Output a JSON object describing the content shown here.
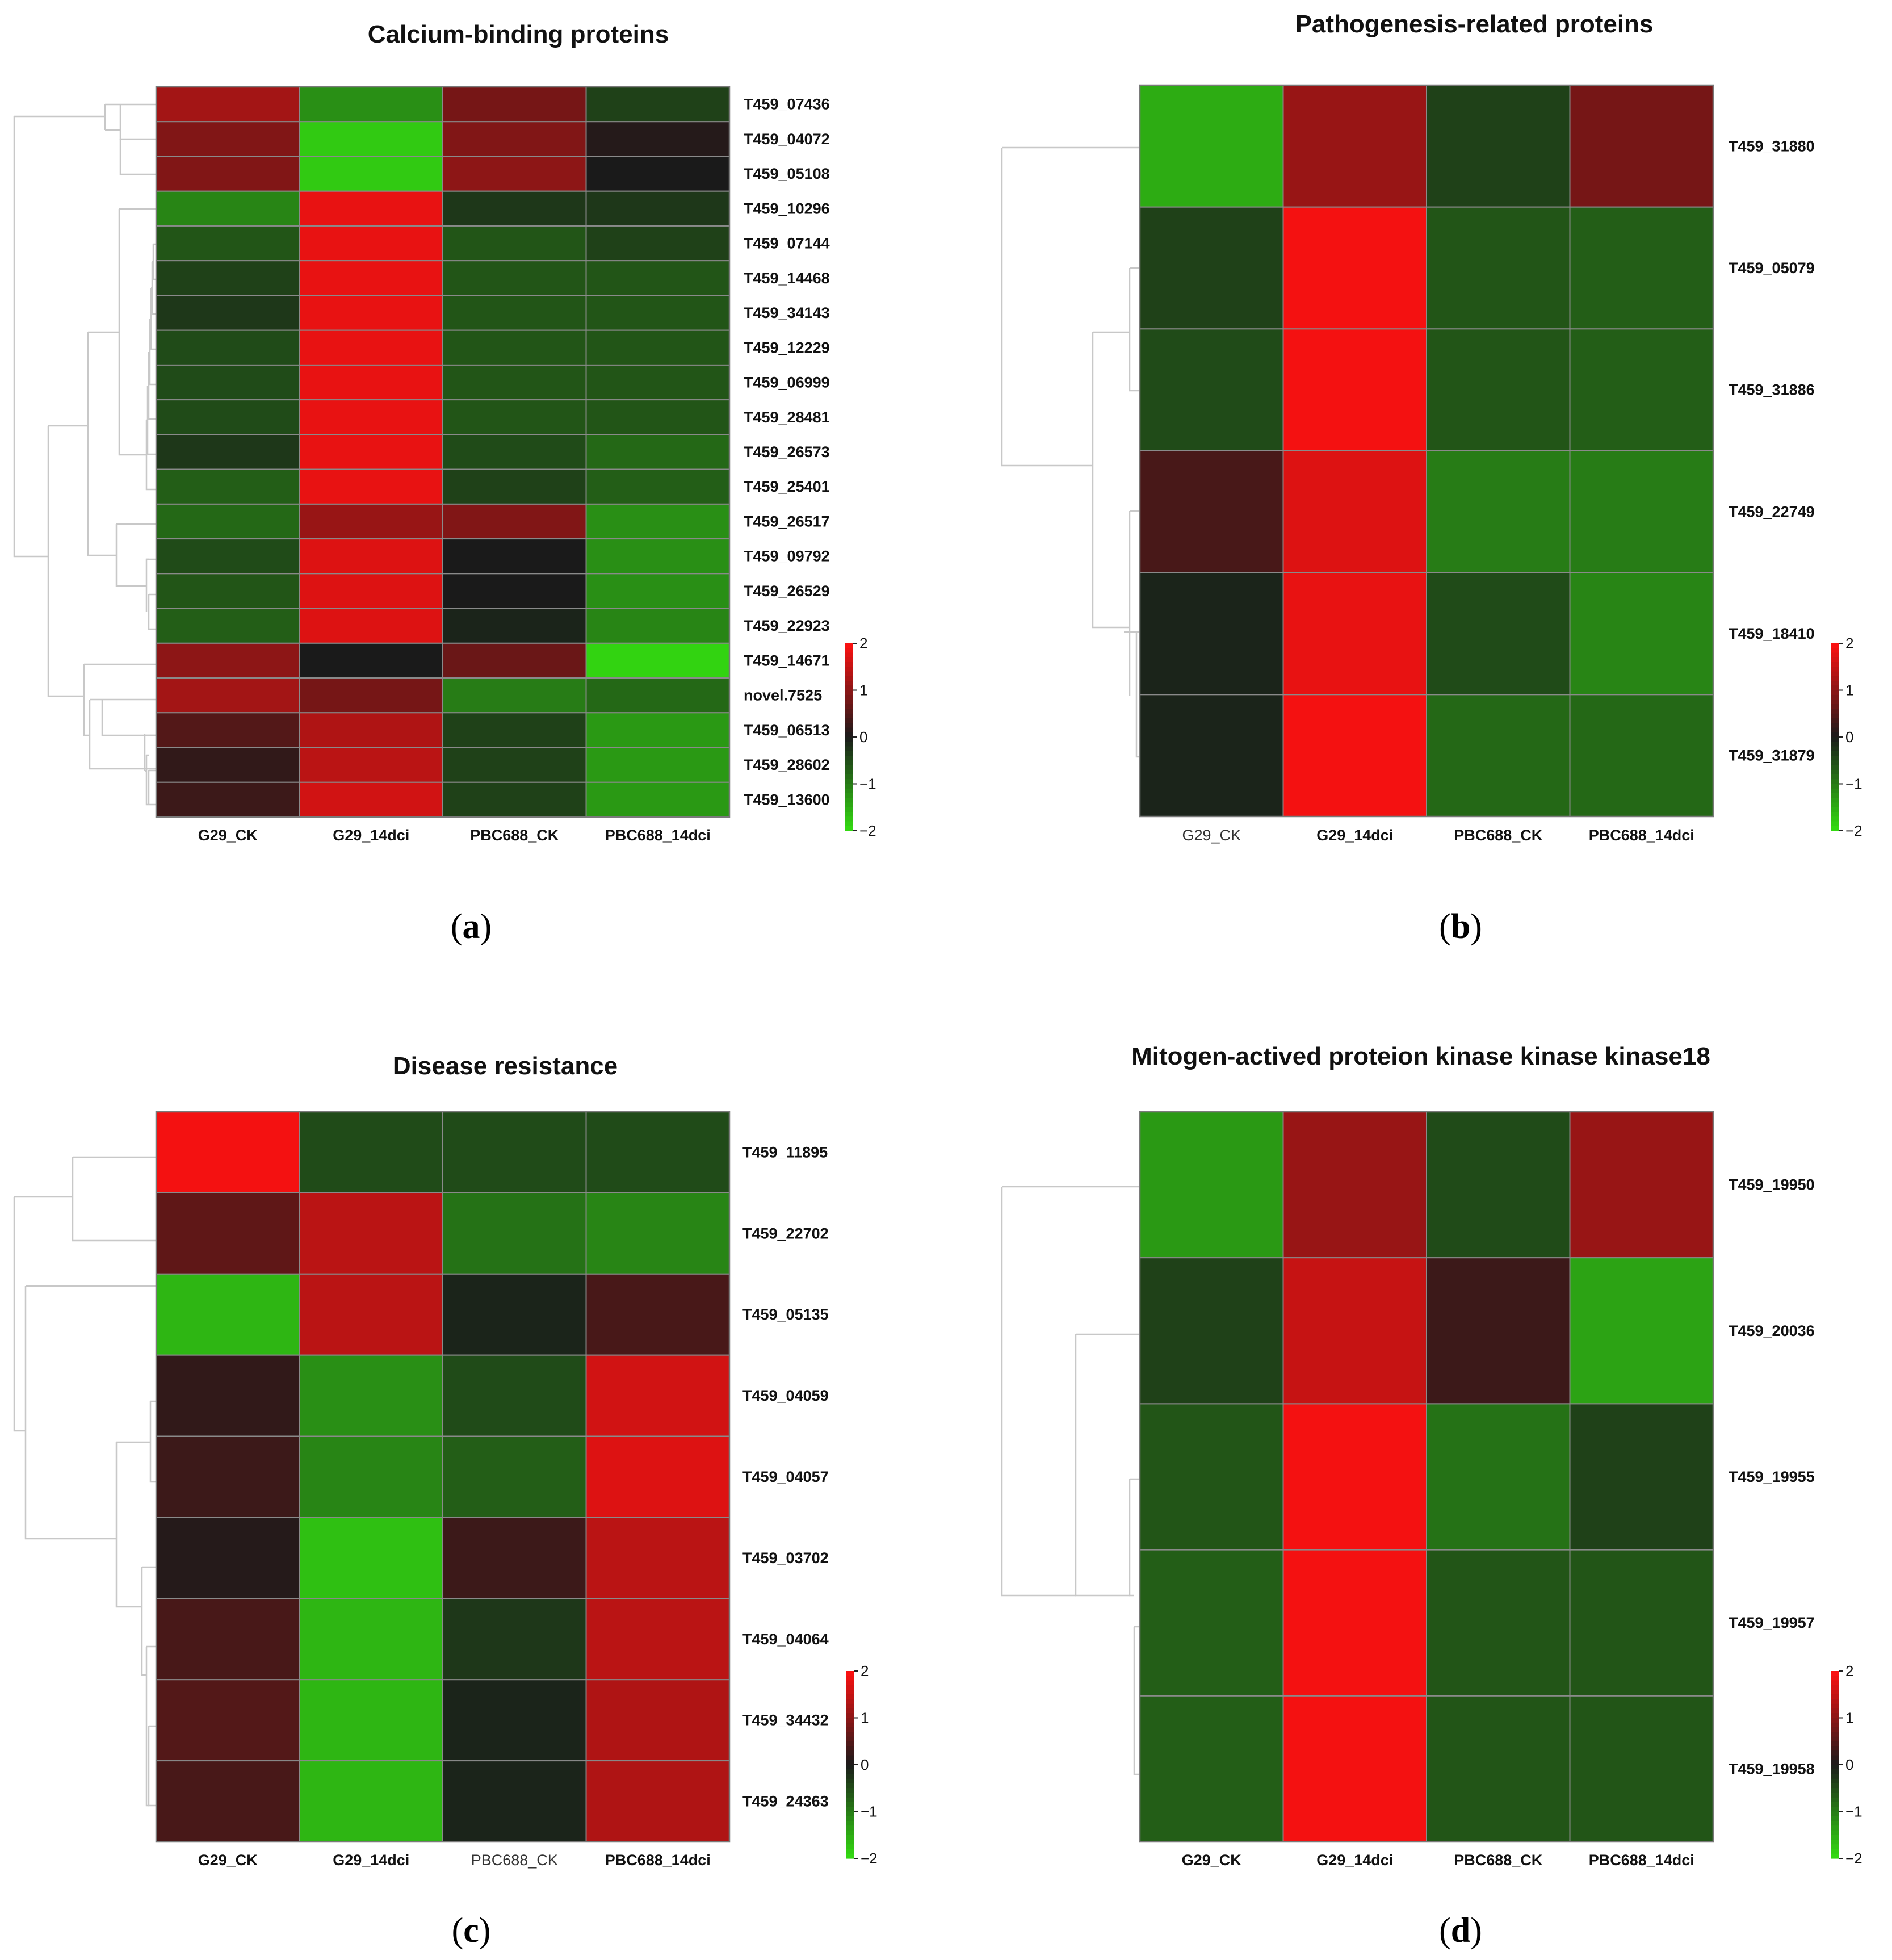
{
  "figure": {
    "colorbar": {
      "min": -2,
      "max": 2,
      "ticks": [
        "2",
        "1",
        "0",
        "−1",
        "−2"
      ],
      "low_color": "#33dd11",
      "mid_color": "#1a1a1a",
      "high_color": "#ff1111"
    }
  },
  "chart_data": [
    {
      "type": "heatmap",
      "panel": "a",
      "caption": "(a)",
      "caption_letter": "a",
      "title": "Calcium-binding proteins",
      "columns": [
        "G29_CK",
        "G29_14dci",
        "PBC688_CK",
        "PBC688_14dci"
      ],
      "column_label_weight": [
        "bold",
        "bold",
        "bold",
        "bold"
      ],
      "rows": [
        "T459_07436",
        "T459_04072",
        "T459_05108",
        "T459_10296",
        "T459_07144",
        "T459_14468",
        "T459_34143",
        "T459_12229",
        "T459_06999",
        "T459_28481",
        "T459_26573",
        "T459_25401",
        "T459_26517",
        "T459_09792",
        "T459_26529",
        "T459_22923",
        "T459_14671",
        "novel.7525",
        "T459_06513",
        "T459_28602",
        "T459_13600"
      ],
      "values": [
        [
          1.2,
          -1.2,
          0.8,
          -0.4
        ],
        [
          0.9,
          -1.8,
          0.9,
          0.1
        ],
        [
          0.9,
          -1.8,
          1.0,
          0.0
        ],
        [
          -1.1,
          1.8,
          -0.3,
          -0.3
        ],
        [
          -0.6,
          1.8,
          -0.6,
          -0.4
        ],
        [
          -0.4,
          1.8,
          -0.6,
          -0.6
        ],
        [
          -0.3,
          1.8,
          -0.6,
          -0.6
        ],
        [
          -0.5,
          1.8,
          -0.6,
          -0.6
        ],
        [
          -0.5,
          1.8,
          -0.6,
          -0.6
        ],
        [
          -0.5,
          1.8,
          -0.6,
          -0.6
        ],
        [
          -0.3,
          1.8,
          -0.5,
          -0.8
        ],
        [
          -0.7,
          1.8,
          -0.4,
          -0.7
        ],
        [
          -0.8,
          1.1,
          0.9,
          -1.2
        ],
        [
          -0.5,
          1.7,
          0.0,
          -1.2
        ],
        [
          -0.6,
          1.7,
          0.0,
          -1.2
        ],
        [
          -0.7,
          1.7,
          -0.1,
          -1.1
        ],
        [
          1.0,
          0.0,
          0.7,
          -1.9
        ],
        [
          1.2,
          0.8,
          -1.0,
          -0.8
        ],
        [
          0.5,
          1.3,
          -0.4,
          -1.3
        ],
        [
          0.2,
          1.4,
          -0.4,
          -1.3
        ],
        [
          0.3,
          1.6,
          -0.4,
          -1.3
        ]
      ]
    },
    {
      "type": "heatmap",
      "panel": "b",
      "caption": "(b)",
      "caption_letter": "b",
      "title": "Pathogenesis-related proteins",
      "columns": [
        "G29_CK",
        "G29_14dci",
        "PBC688_CK",
        "PBC688_14dci"
      ],
      "column_label_weight": [
        "normal",
        "bold",
        "bold",
        "bold"
      ],
      "rows": [
        "T459_31880",
        "T459_05079",
        "T459_31886",
        "T459_22749",
        "T459_18410",
        "T459_31879"
      ],
      "values": [
        [
          -1.5,
          1.1,
          -0.4,
          0.8
        ],
        [
          -0.4,
          1.9,
          -0.6,
          -0.7
        ],
        [
          -0.5,
          1.9,
          -0.6,
          -0.7
        ],
        [
          0.4,
          1.7,
          -1.0,
          -1.0
        ],
        [
          -0.1,
          1.8,
          -0.5,
          -1.1
        ],
        [
          -0.1,
          1.9,
          -0.8,
          -0.8
        ]
      ]
    },
    {
      "type": "heatmap",
      "panel": "c",
      "caption": "(c)",
      "caption_letter": "c",
      "title": "Disease resistance",
      "columns": [
        "G29_CK",
        "G29_14dci",
        "PBC688_CK",
        "PBC688_14dci"
      ],
      "column_label_weight": [
        "bold",
        "bold",
        "normal",
        "bold"
      ],
      "rows": [
        "T459_11895",
        "T459_22702",
        "T459_05135",
        "T459_04059",
        "T459_04057",
        "T459_03702",
        "T459_04064",
        "T459_34432",
        "T459_24363"
      ],
      "values": [
        [
          1.9,
          -0.5,
          -0.5,
          -0.5
        ],
        [
          0.6,
          1.4,
          -0.9,
          -1.1
        ],
        [
          -1.6,
          1.4,
          -0.1,
          0.4
        ],
        [
          0.2,
          -1.2,
          -0.5,
          1.6
        ],
        [
          0.3,
          -1.1,
          -0.7,
          1.7
        ],
        [
          0.1,
          -1.7,
          0.3,
          1.4
        ],
        [
          0.4,
          -1.6,
          -0.3,
          1.4
        ],
        [
          0.5,
          -1.6,
          -0.1,
          1.3
        ],
        [
          0.4,
          -1.6,
          -0.1,
          1.3
        ]
      ]
    },
    {
      "type": "heatmap",
      "panel": "d",
      "caption": "(d)",
      "caption_letter": "d",
      "title": "Mitogen-actived proteion kinase kinase kinase18",
      "columns": [
        "G29_CK",
        "G29_14dci",
        "PBC688_CK",
        "PBC688_14dci"
      ],
      "column_label_weight": [
        "bold",
        "bold",
        "bold",
        "bold"
      ],
      "rows": [
        "T459_19950",
        "T459_20036",
        "T459_19955",
        "T459_19957",
        "T459_19958"
      ],
      "values": [
        [
          -1.3,
          1.1,
          -0.5,
          1.1
        ],
        [
          -0.4,
          1.5,
          0.3,
          -1.4
        ],
        [
          -0.6,
          1.9,
          -0.9,
          -0.4
        ],
        [
          -0.7,
          1.9,
          -0.6,
          -0.6
        ],
        [
          -0.7,
          1.9,
          -0.6,
          -0.6
        ]
      ]
    }
  ]
}
